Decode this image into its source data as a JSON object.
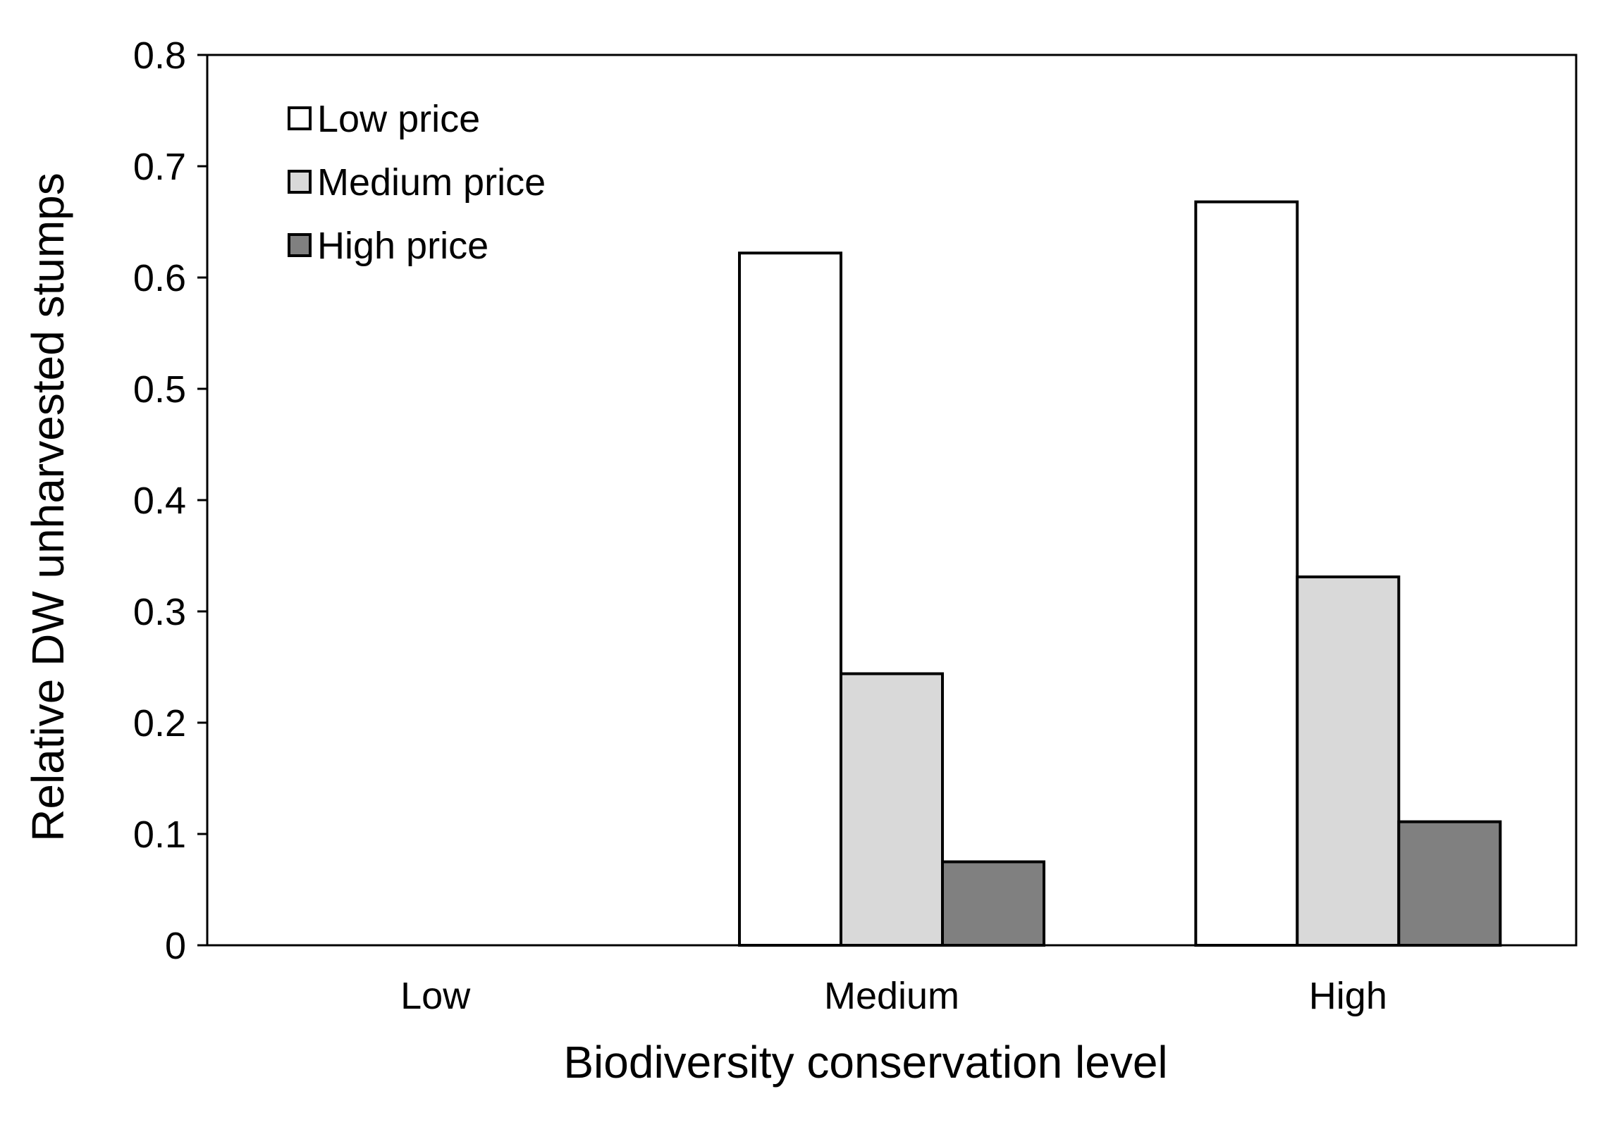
{
  "chart_data": {
    "type": "bar",
    "title": "",
    "xlabel": "Biodiversity conservation level",
    "ylabel": "Relative DW unharvested stumps",
    "categories": [
      "Low",
      "Medium",
      "High"
    ],
    "series": [
      {
        "name": "Low price",
        "color": "#ffffff",
        "values": [
          0,
          0.622,
          0.668
        ]
      },
      {
        "name": "Medium price",
        "color": "#d9d9d9",
        "values": [
          0,
          0.244,
          0.331
        ]
      },
      {
        "name": "High price",
        "color": "#808080",
        "values": [
          0,
          0.075,
          0.111
        ]
      }
    ],
    "ylim": [
      0,
      0.8
    ],
    "yticks": [
      0,
      0.1,
      0.2,
      0.3,
      0.4,
      0.5,
      0.6,
      0.7,
      0.8
    ],
    "ytick_labels": [
      "0",
      "0.1",
      "0.2",
      "0.3",
      "0.4",
      "0.5",
      "0.6",
      "0.7",
      "0.8"
    ],
    "grid": false,
    "legend_position": "top-left"
  }
}
